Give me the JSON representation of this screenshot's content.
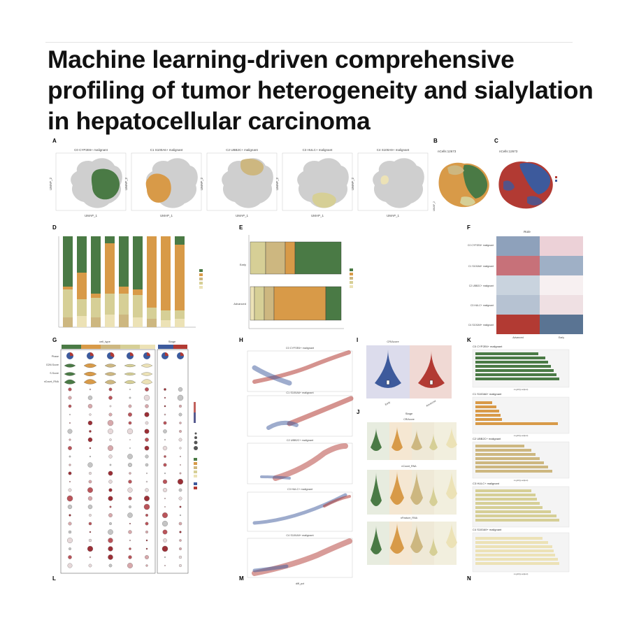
{
  "title": "Machine learning-driven comprehensive profiling of tumor heterogeneity and sialylation in hepatocellular carcinoma",
  "colors": {
    "green": "#4a7a45",
    "orange": "#d89a48",
    "tan": "#cdb780",
    "khaki": "#d6cf96",
    "cream": "#ece2b6",
    "red": "#b23a33",
    "blue": "#3d5a9c",
    "gray": "#c9c9c9"
  },
  "panel_letters": [
    "A",
    "B",
    "C",
    "D",
    "E",
    "F",
    "G",
    "H",
    "I",
    "J",
    "K",
    "L",
    "M",
    "N"
  ],
  "panelA": {
    "titles": [
      "C0 CYP2E6+ malignant",
      "C1 S100A6+ malignant",
      "C2 UBB2C+ malignant",
      "C3 HULC+ malignant",
      "C4 S100A9+ malignant"
    ],
    "xlabel": "UMAP_1",
    "ylabel": "UMAP_2"
  },
  "panelB": {
    "label": "nCells:12673"
  },
  "panelC": {
    "label": "nCells:12673"
  },
  "panelE": {
    "categories": [
      "Early",
      "Advanced"
    ]
  },
  "panelF": {
    "title": "Ro/e",
    "rows": [
      "C0 CYP2E6+ malignant",
      "C1 S100A6+ malignant",
      "C2 UBB2C+ malignant",
      "C3 HULC+ malignant",
      "C4 S100A9+ malignant"
    ],
    "cols": [
      "Advanced",
      "Early"
    ]
  },
  "panelG": {
    "header1": "cell_type",
    "header2": "Stage",
    "tracks": [
      "Phase",
      "G2M.Score",
      "S.Score",
      "nCount_RNA"
    ]
  },
  "panelH": {
    "titles": [
      "C0 CYP2E6+ malignant",
      "C1 S100A6+ malignant",
      "C2 UBB2C+ malignant",
      "C3 HULC+ malignant",
      "C4 S100A9+ malignant"
    ],
    "xlabel": "diff_pct"
  },
  "panelI": {
    "title": "CRIAcore",
    "categories": [
      "Early",
      "Advanced"
    ]
  },
  "panelJ": {
    "header": "Stage",
    "titles": [
      "CRIAcore",
      "nCount_RNA",
      "nFeature_RNA"
    ]
  },
  "panelK": {
    "titles": [
      "C0 CYP2E6+ malignant",
      "C1 S100A6+ malignant",
      "C2 UBB2C+ malignant",
      "C3 HULC+ malignant",
      "C4 S100A9+ malignant"
    ],
    "xlabel": "-log10(p.adjust)"
  }
}
